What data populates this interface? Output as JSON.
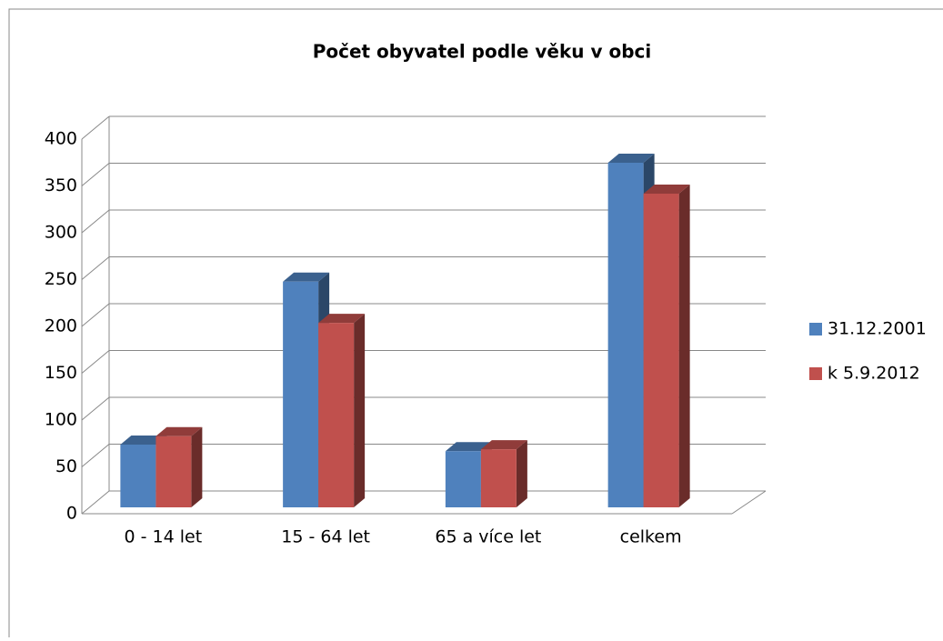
{
  "chart_data": {
    "type": "bar3d",
    "title": "Počet obyvatel podle věku v obci",
    "categories": [
      "0 - 14 let",
      "15 - 64 let",
      "65 a více let",
      "celkem"
    ],
    "series": [
      {
        "name": "31.12.2001",
        "color": "#4f81bd",
        "values": [
          67,
          241,
          60,
          368
        ]
      },
      {
        "name": "k 5.9.2012",
        "color": "#c0504d",
        "values": [
          76,
          197,
          62,
          335
        ]
      }
    ],
    "ylim": [
      0,
      400
    ],
    "yticks": [
      0,
      50,
      100,
      150,
      200,
      250,
      300,
      350,
      400
    ],
    "grid": true,
    "legend": "right"
  }
}
